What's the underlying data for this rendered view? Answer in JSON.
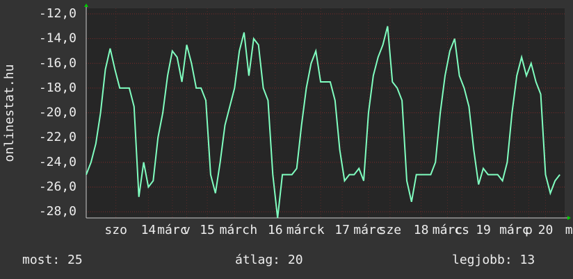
{
  "chart_data": {
    "type": "line",
    "y_label": "onlinestat.hu",
    "color": "#80ffc0",
    "grid": true,
    "xlim": [
      0,
      100
    ],
    "ylim": [
      -28.5,
      -11.55
    ],
    "yticks": [
      {
        "value": -12,
        "label": "-12,0"
      },
      {
        "value": -14,
        "label": "-14,0"
      },
      {
        "value": -16,
        "label": "-16,0"
      },
      {
        "value": -18,
        "label": "-18,0"
      },
      {
        "value": -20,
        "label": "-20,0"
      },
      {
        "value": -22,
        "label": "-22,0"
      },
      {
        "value": -24,
        "label": "-24,0"
      },
      {
        "value": -26,
        "label": "-26,0"
      },
      {
        "value": -28,
        "label": "-28,0"
      }
    ],
    "xticks": [
      {
        "value": 6.2,
        "label": "szo"
      },
      {
        "value": 13,
        "label": "14"
      },
      {
        "value": 18,
        "label": "márc"
      },
      {
        "value": 21,
        "label": "v"
      },
      {
        "value": 25.3,
        "label": "15"
      },
      {
        "value": 31,
        "label": "márc"
      },
      {
        "value": 35,
        "label": "h"
      },
      {
        "value": 39.5,
        "label": "16"
      },
      {
        "value": 45,
        "label": "márc"
      },
      {
        "value": 49,
        "label": "k"
      },
      {
        "value": 53.5,
        "label": "17"
      },
      {
        "value": 59,
        "label": "márc"
      },
      {
        "value": 63.5,
        "label": "sze"
      },
      {
        "value": 70,
        "label": "18"
      },
      {
        "value": 75.5,
        "label": "márc"
      },
      {
        "value": 78.5,
        "label": "cs"
      },
      {
        "value": 83,
        "label": "19"
      },
      {
        "value": 89.5,
        "label": "márc"
      },
      {
        "value": 92.5,
        "label": "p"
      },
      {
        "value": 96,
        "label": "20"
      },
      {
        "value": 100.9,
        "label": "m"
      }
    ],
    "values": [
      -25,
      -24,
      -22.5,
      -20,
      -16.5,
      -14.8,
      -16.5,
      -18,
      -18,
      -18,
      -19.5,
      -26.8,
      -24,
      -26,
      -25.5,
      -22,
      -20,
      -17,
      -15,
      -15.5,
      -17.5,
      -14.5,
      -16,
      -18,
      -18,
      -19,
      -25,
      -26.5,
      -24,
      -21,
      -19.5,
      -18,
      -15,
      -13.5,
      -17,
      -14,
      -14.5,
      -18,
      -19,
      -25,
      -28.5,
      -25,
      -25,
      -25,
      -24.5,
      -21,
      -18,
      -16,
      -15,
      -17.5,
      -17.5,
      -17.5,
      -19,
      -23,
      -25.5,
      -25,
      -25,
      -24.5,
      -25.5,
      -20,
      -17,
      -15.5,
      -14.5,
      -13,
      -17.5,
      -18,
      -19,
      -25.5,
      -27.2,
      -25,
      -25,
      -25,
      -25,
      -24,
      -20,
      -17,
      -15,
      -14,
      -17,
      -18,
      -19.5,
      -23,
      -25.8,
      -24.5,
      -25,
      -25,
      -25,
      -25.5,
      -24,
      -20,
      -17,
      -15.5,
      -17,
      -16,
      -17.5,
      -18.5,
      -25,
      -26.5,
      -25.5,
      -25
    ]
  },
  "footer": {
    "current": "most: 25",
    "average": "átlag: 20",
    "best": "legjobb: 13"
  }
}
